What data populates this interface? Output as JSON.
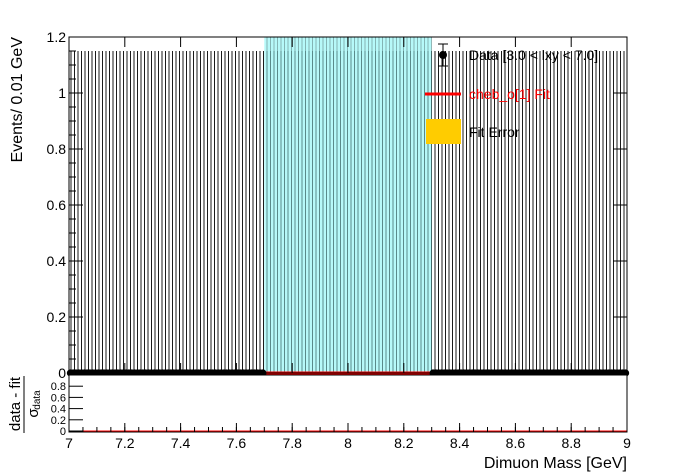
{
  "chart_data": [
    {
      "type": "scatter",
      "name_panel": "main",
      "ylabel": "Events/ 0.01 GeV",
      "xlim": [
        7,
        9
      ],
      "ylim": [
        0,
        1.2
      ],
      "yticks": [
        "0",
        "0.2",
        "0.4",
        "0.6",
        "0.8",
        "1",
        "1.2"
      ],
      "hatch_top": 1.15,
      "blinded_region": [
        7.7,
        8.3
      ],
      "series": [
        {
          "name": "Data [3.0 < lxy < 7.0]",
          "x_start": 7.005,
          "x_step": 0.01,
          "count": 200,
          "y_value": 0,
          "color": "#000000"
        },
        {
          "name": "cheb_o[1] Fit",
          "x": [
            7,
            9
          ],
          "y": [
            0,
            0
          ],
          "color": "#ff0000"
        },
        {
          "name": "Fit Error",
          "color": "#ffcc00"
        }
      ],
      "legend_position": "top-right"
    },
    {
      "type": "line",
      "name_panel": "ratio",
      "ylabel_num": "data - fit",
      "ylabel_den": "σ",
      "ylabel_sub": "data",
      "xlabel": "Dimuon Mass [GeV]",
      "xlim": [
        7,
        9
      ],
      "ylim": [
        0,
        1
      ],
      "yticks": [
        "0",
        "0.2",
        "0.4",
        "0.6",
        "0.8"
      ],
      "xticks": [
        "7",
        "7.2",
        "7.4",
        "7.6",
        "7.8",
        "8",
        "8.2",
        "8.4",
        "8.6",
        "8.8",
        "9"
      ],
      "zero_line_color": "#ff0000"
    }
  ],
  "colors": {
    "blind_fill": "#9ff7f7",
    "hatch": "#000000",
    "fit": "#ff0000",
    "fit_error": "#ffcc00"
  }
}
